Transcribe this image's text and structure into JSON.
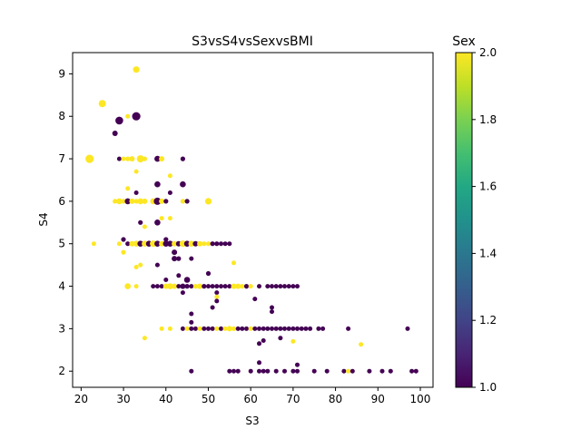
{
  "chart_data": {
    "type": "scatter",
    "title": "S3vsS4vsSexvsBMI",
    "xlabel": "S3",
    "ylabel": "S4",
    "xlim": [
      18,
      103
    ],
    "ylim": [
      1.62,
      9.5
    ],
    "x_ticks": [
      20,
      30,
      40,
      50,
      60,
      70,
      80,
      90,
      100
    ],
    "y_ticks": [
      2,
      3,
      4,
      5,
      6,
      7,
      8,
      9
    ],
    "grid": false,
    "colorbar": {
      "label": "Sex",
      "min": 1.0,
      "max": 2.0,
      "ticks": [
        "1.0",
        "1.2",
        "1.4",
        "1.6",
        "1.8",
        "2.0"
      ],
      "colormap": "viridis"
    },
    "size_variable": "BMI",
    "colors": {
      "sex_1": "#440154",
      "sex_2": "#fde725"
    },
    "points": [
      {
        "x": 22,
        "y": 7,
        "sex": 2,
        "bmi": 32
      },
      {
        "x": 25,
        "y": 8.3,
        "sex": 2,
        "bmi": 30
      },
      {
        "x": 33,
        "y": 9.1,
        "sex": 2,
        "bmi": 29
      },
      {
        "x": 29,
        "y": 7.9,
        "sex": 1,
        "bmi": 31
      },
      {
        "x": 33,
        "y": 8,
        "sex": 1,
        "bmi": 32
      },
      {
        "x": 31,
        "y": 8,
        "sex": 2,
        "bmi": 24
      },
      {
        "x": 28,
        "y": 7.6,
        "sex": 1,
        "bmi": 27
      },
      {
        "x": 23,
        "y": 5,
        "sex": 2,
        "bmi": 22
      },
      {
        "x": 29,
        "y": 7,
        "sex": 1,
        "bmi": 22
      },
      {
        "x": 30,
        "y": 7,
        "sex": 2,
        "bmi": 25
      },
      {
        "x": 31,
        "y": 7,
        "sex": 2,
        "bmi": 26
      },
      {
        "x": 32,
        "y": 7,
        "sex": 2,
        "bmi": 27
      },
      {
        "x": 34,
        "y": 7,
        "sex": 2,
        "bmi": 30
      },
      {
        "x": 35,
        "y": 7,
        "sex": 2,
        "bmi": 26
      },
      {
        "x": 38,
        "y": 7,
        "sex": 1,
        "bmi": 28
      },
      {
        "x": 39,
        "y": 7,
        "sex": 2,
        "bmi": 27
      },
      {
        "x": 44,
        "y": 7,
        "sex": 1,
        "bmi": 26
      },
      {
        "x": 41,
        "y": 6.6,
        "sex": 2,
        "bmi": 25
      },
      {
        "x": 33,
        "y": 6.7,
        "sex": 2,
        "bmi": 22
      },
      {
        "x": 38,
        "y": 6.4,
        "sex": 1,
        "bmi": 28
      },
      {
        "x": 44,
        "y": 6.4,
        "sex": 1,
        "bmi": 28
      },
      {
        "x": 31,
        "y": 6.3,
        "sex": 2,
        "bmi": 22
      },
      {
        "x": 33,
        "y": 6.2,
        "sex": 1,
        "bmi": 25
      },
      {
        "x": 41,
        "y": 6.2,
        "sex": 1,
        "bmi": 22
      },
      {
        "x": 28,
        "y": 6,
        "sex": 2,
        "bmi": 26
      },
      {
        "x": 29,
        "y": 6,
        "sex": 2,
        "bmi": 28
      },
      {
        "x": 30,
        "y": 6,
        "sex": 2,
        "bmi": 26
      },
      {
        "x": 31,
        "y": 6,
        "sex": 1,
        "bmi": 28
      },
      {
        "x": 32,
        "y": 6,
        "sex": 2,
        "bmi": 27
      },
      {
        "x": 33,
        "y": 6,
        "sex": 2,
        "bmi": 26
      },
      {
        "x": 34,
        "y": 6,
        "sex": 2,
        "bmi": 28
      },
      {
        "x": 35,
        "y": 6,
        "sex": 2,
        "bmi": 27
      },
      {
        "x": 37,
        "y": 6,
        "sex": 2,
        "bmi": 28
      },
      {
        "x": 38,
        "y": 6,
        "sex": 1,
        "bmi": 30
      },
      {
        "x": 39,
        "y": 6,
        "sex": 2,
        "bmi": 27
      },
      {
        "x": 40,
        "y": 6,
        "sex": 1,
        "bmi": 26
      },
      {
        "x": 44,
        "y": 6,
        "sex": 2,
        "bmi": 26
      },
      {
        "x": 45,
        "y": 6,
        "sex": 1,
        "bmi": 26
      },
      {
        "x": 50,
        "y": 6,
        "sex": 2,
        "bmi": 29
      },
      {
        "x": 41,
        "y": 5.6,
        "sex": 2,
        "bmi": 22
      },
      {
        "x": 39,
        "y": 5.6,
        "sex": 2,
        "bmi": 22
      },
      {
        "x": 34,
        "y": 5.5,
        "sex": 1,
        "bmi": 26
      },
      {
        "x": 38,
        "y": 5.5,
        "sex": 1,
        "bmi": 28
      },
      {
        "x": 35,
        "y": 5.4,
        "sex": 2,
        "bmi": 22
      },
      {
        "x": 30,
        "y": 5.1,
        "sex": 1,
        "bmi": 26
      },
      {
        "x": 40,
        "y": 5.1,
        "sex": 1,
        "bmi": 26
      },
      {
        "x": 29,
        "y": 5,
        "sex": 2,
        "bmi": 25
      },
      {
        "x": 31,
        "y": 5,
        "sex": 1,
        "bmi": 26
      },
      {
        "x": 32,
        "y": 5,
        "sex": 2,
        "bmi": 27
      },
      {
        "x": 33,
        "y": 5,
        "sex": 2,
        "bmi": 28
      },
      {
        "x": 34,
        "y": 5,
        "sex": 1,
        "bmi": 28
      },
      {
        "x": 35,
        "y": 5,
        "sex": 2,
        "bmi": 28
      },
      {
        "x": 36,
        "y": 5,
        "sex": 1,
        "bmi": 28
      },
      {
        "x": 37,
        "y": 5,
        "sex": 2,
        "bmi": 29
      },
      {
        "x": 38,
        "y": 5,
        "sex": 1,
        "bmi": 28
      },
      {
        "x": 39,
        "y": 5,
        "sex": 2,
        "bmi": 27
      },
      {
        "x": 40,
        "y": 5,
        "sex": 1,
        "bmi": 28
      },
      {
        "x": 41,
        "y": 5,
        "sex": 1,
        "bmi": 28
      },
      {
        "x": 42,
        "y": 5,
        "sex": 2,
        "bmi": 27
      },
      {
        "x": 43,
        "y": 5,
        "sex": 1,
        "bmi": 27
      },
      {
        "x": 44,
        "y": 5,
        "sex": 2,
        "bmi": 29
      },
      {
        "x": 45,
        "y": 5,
        "sex": 1,
        "bmi": 28
      },
      {
        "x": 46,
        "y": 5,
        "sex": 2,
        "bmi": 28
      },
      {
        "x": 47,
        "y": 5,
        "sex": 1,
        "bmi": 27
      },
      {
        "x": 48,
        "y": 5,
        "sex": 2,
        "bmi": 27
      },
      {
        "x": 49,
        "y": 5,
        "sex": 2,
        "bmi": 26
      },
      {
        "x": 50,
        "y": 5,
        "sex": 2,
        "bmi": 26
      },
      {
        "x": 51,
        "y": 5,
        "sex": 1,
        "bmi": 26
      },
      {
        "x": 52,
        "y": 5,
        "sex": 1,
        "bmi": 26
      },
      {
        "x": 53,
        "y": 5,
        "sex": 1,
        "bmi": 25
      },
      {
        "x": 54,
        "y": 5,
        "sex": 1,
        "bmi": 25
      },
      {
        "x": 55,
        "y": 5,
        "sex": 1,
        "bmi": 25
      },
      {
        "x": 30,
        "y": 4.8,
        "sex": 2,
        "bmi": 26
      },
      {
        "x": 42,
        "y": 4.8,
        "sex": 1,
        "bmi": 27
      },
      {
        "x": 42,
        "y": 4.65,
        "sex": 1,
        "bmi": 27
      },
      {
        "x": 43,
        "y": 4.65,
        "sex": 1,
        "bmi": 26
      },
      {
        "x": 46,
        "y": 4.65,
        "sex": 1,
        "bmi": 25
      },
      {
        "x": 56,
        "y": 4.55,
        "sex": 2,
        "bmi": 24
      },
      {
        "x": 38,
        "y": 4.5,
        "sex": 1,
        "bmi": 25
      },
      {
        "x": 33,
        "y": 4.45,
        "sex": 2,
        "bmi": 25
      },
      {
        "x": 34,
        "y": 4.5,
        "sex": 2,
        "bmi": 22
      },
      {
        "x": 50,
        "y": 4.3,
        "sex": 1,
        "bmi": 26
      },
      {
        "x": 43,
        "y": 4.25,
        "sex": 1,
        "bmi": 24
      },
      {
        "x": 40,
        "y": 4.15,
        "sex": 1,
        "bmi": 24
      },
      {
        "x": 45,
        "y": 4.15,
        "sex": 1,
        "bmi": 28
      },
      {
        "x": 31,
        "y": 4,
        "sex": 2,
        "bmi": 28
      },
      {
        "x": 33,
        "y": 4,
        "sex": 2,
        "bmi": 24
      },
      {
        "x": 37,
        "y": 4,
        "sex": 1,
        "bmi": 24
      },
      {
        "x": 38,
        "y": 4,
        "sex": 1,
        "bmi": 24
      },
      {
        "x": 39,
        "y": 4,
        "sex": 1,
        "bmi": 25
      },
      {
        "x": 40,
        "y": 4,
        "sex": 2,
        "bmi": 27
      },
      {
        "x": 41,
        "y": 4,
        "sex": 2,
        "bmi": 28
      },
      {
        "x": 42,
        "y": 4,
        "sex": 2,
        "bmi": 27
      },
      {
        "x": 43,
        "y": 4,
        "sex": 1,
        "bmi": 25
      },
      {
        "x": 44,
        "y": 4,
        "sex": 1,
        "bmi": 27
      },
      {
        "x": 45,
        "y": 4,
        "sex": 1,
        "bmi": 26
      },
      {
        "x": 46,
        "y": 4,
        "sex": 1,
        "bmi": 25
      },
      {
        "x": 47,
        "y": 4,
        "sex": 2,
        "bmi": 26
      },
      {
        "x": 48,
        "y": 4,
        "sex": 2,
        "bmi": 27
      },
      {
        "x": 49,
        "y": 4,
        "sex": 1,
        "bmi": 26
      },
      {
        "x": 50,
        "y": 4,
        "sex": 1,
        "bmi": 25
      },
      {
        "x": 51,
        "y": 4,
        "sex": 1,
        "bmi": 24
      },
      {
        "x": 52,
        "y": 4,
        "sex": 1,
        "bmi": 24
      },
      {
        "x": 53,
        "y": 4,
        "sex": 1,
        "bmi": 24
      },
      {
        "x": 54,
        "y": 4,
        "sex": 1,
        "bmi": 24
      },
      {
        "x": 55,
        "y": 4,
        "sex": 1,
        "bmi": 25
      },
      {
        "x": 56,
        "y": 4,
        "sex": 2,
        "bmi": 27
      },
      {
        "x": 57,
        "y": 4,
        "sex": 2,
        "bmi": 27
      },
      {
        "x": 58,
        "y": 4,
        "sex": 2,
        "bmi": 26
      },
      {
        "x": 59,
        "y": 4,
        "sex": 1,
        "bmi": 26
      },
      {
        "x": 60,
        "y": 4,
        "sex": 2,
        "bmi": 25
      },
      {
        "x": 62,
        "y": 4,
        "sex": 1,
        "bmi": 24
      },
      {
        "x": 64,
        "y": 4,
        "sex": 1,
        "bmi": 24
      },
      {
        "x": 65,
        "y": 4,
        "sex": 1,
        "bmi": 24
      },
      {
        "x": 66,
        "y": 4,
        "sex": 1,
        "bmi": 23
      },
      {
        "x": 67,
        "y": 4,
        "sex": 1,
        "bmi": 23
      },
      {
        "x": 68,
        "y": 4,
        "sex": 1,
        "bmi": 23
      },
      {
        "x": 69,
        "y": 4,
        "sex": 1,
        "bmi": 22
      },
      {
        "x": 70,
        "y": 4,
        "sex": 1,
        "bmi": 23
      },
      {
        "x": 71,
        "y": 4,
        "sex": 1,
        "bmi": 23
      },
      {
        "x": 44,
        "y": 3.85,
        "sex": 1,
        "bmi": 25
      },
      {
        "x": 52,
        "y": 3.85,
        "sex": 1,
        "bmi": 23
      },
      {
        "x": 52,
        "y": 3.75,
        "sex": 2,
        "bmi": 23
      },
      {
        "x": 52,
        "y": 3.65,
        "sex": 1,
        "bmi": 23
      },
      {
        "x": 61,
        "y": 3.7,
        "sex": 1,
        "bmi": 23
      },
      {
        "x": 51,
        "y": 3.5,
        "sex": 1,
        "bmi": 25
      },
      {
        "x": 65,
        "y": 3.5,
        "sex": 1,
        "bmi": 22
      },
      {
        "x": 65,
        "y": 3.4,
        "sex": 1,
        "bmi": 22
      },
      {
        "x": 46,
        "y": 3.35,
        "sex": 1,
        "bmi": 23
      },
      {
        "x": 46,
        "y": 3.15,
        "sex": 1,
        "bmi": 25
      },
      {
        "x": 39,
        "y": 3,
        "sex": 2,
        "bmi": 24
      },
      {
        "x": 41,
        "y": 3,
        "sex": 2,
        "bmi": 24
      },
      {
        "x": 44,
        "y": 3,
        "sex": 1,
        "bmi": 25
      },
      {
        "x": 45,
        "y": 3,
        "sex": 2,
        "bmi": 24
      },
      {
        "x": 46,
        "y": 3,
        "sex": 1,
        "bmi": 24
      },
      {
        "x": 47,
        "y": 3,
        "sex": 1,
        "bmi": 23
      },
      {
        "x": 48,
        "y": 3,
        "sex": 2,
        "bmi": 24
      },
      {
        "x": 49,
        "y": 3,
        "sex": 1,
        "bmi": 25
      },
      {
        "x": 50,
        "y": 3,
        "sex": 1,
        "bmi": 24
      },
      {
        "x": 51,
        "y": 3,
        "sex": 1,
        "bmi": 25
      },
      {
        "x": 52,
        "y": 3,
        "sex": 2,
        "bmi": 24
      },
      {
        "x": 53,
        "y": 3,
        "sex": 1,
        "bmi": 24
      },
      {
        "x": 54,
        "y": 3,
        "sex": 2,
        "bmi": 25
      },
      {
        "x": 55,
        "y": 3,
        "sex": 2,
        "bmi": 27
      },
      {
        "x": 56,
        "y": 3,
        "sex": 2,
        "bmi": 26
      },
      {
        "x": 57,
        "y": 3,
        "sex": 1,
        "bmi": 25
      },
      {
        "x": 58,
        "y": 3,
        "sex": 1,
        "bmi": 24
      },
      {
        "x": 59,
        "y": 3,
        "sex": 1,
        "bmi": 24
      },
      {
        "x": 60,
        "y": 3,
        "sex": 2,
        "bmi": 25
      },
      {
        "x": 61,
        "y": 3,
        "sex": 1,
        "bmi": 24
      },
      {
        "x": 62,
        "y": 3,
        "sex": 1,
        "bmi": 24
      },
      {
        "x": 63,
        "y": 3,
        "sex": 1,
        "bmi": 23
      },
      {
        "x": 64,
        "y": 3,
        "sex": 1,
        "bmi": 24
      },
      {
        "x": 65,
        "y": 3,
        "sex": 1,
        "bmi": 24
      },
      {
        "x": 66,
        "y": 3,
        "sex": 1,
        "bmi": 24
      },
      {
        "x": 67,
        "y": 3,
        "sex": 1,
        "bmi": 23
      },
      {
        "x": 68,
        "y": 3,
        "sex": 1,
        "bmi": 24
      },
      {
        "x": 69,
        "y": 3,
        "sex": 1,
        "bmi": 24
      },
      {
        "x": 70,
        "y": 3,
        "sex": 1,
        "bmi": 24
      },
      {
        "x": 71,
        "y": 3,
        "sex": 1,
        "bmi": 24
      },
      {
        "x": 72,
        "y": 3,
        "sex": 1,
        "bmi": 23
      },
      {
        "x": 73,
        "y": 3,
        "sex": 1,
        "bmi": 23
      },
      {
        "x": 74,
        "y": 3,
        "sex": 1,
        "bmi": 23
      },
      {
        "x": 76,
        "y": 3,
        "sex": 1,
        "bmi": 23
      },
      {
        "x": 77,
        "y": 3,
        "sex": 1,
        "bmi": 23
      },
      {
        "x": 83,
        "y": 3,
        "sex": 1,
        "bmi": 22
      },
      {
        "x": 97,
        "y": 3,
        "sex": 1,
        "bmi": 22
      },
      {
        "x": 35,
        "y": 2.78,
        "sex": 2,
        "bmi": 25
      },
      {
        "x": 67,
        "y": 2.78,
        "sex": 1,
        "bmi": 22
      },
      {
        "x": 63,
        "y": 2.72,
        "sex": 1,
        "bmi": 23
      },
      {
        "x": 62,
        "y": 2.65,
        "sex": 1,
        "bmi": 22
      },
      {
        "x": 70,
        "y": 2.7,
        "sex": 2,
        "bmi": 22
      },
      {
        "x": 86,
        "y": 2.63,
        "sex": 2,
        "bmi": 23
      },
      {
        "x": 62,
        "y": 2.2,
        "sex": 1,
        "bmi": 22
      },
      {
        "x": 71,
        "y": 2.15,
        "sex": 1,
        "bmi": 22
      },
      {
        "x": 46,
        "y": 2,
        "sex": 1,
        "bmi": 22
      },
      {
        "x": 55,
        "y": 2,
        "sex": 1,
        "bmi": 24
      },
      {
        "x": 56,
        "y": 2,
        "sex": 1,
        "bmi": 23
      },
      {
        "x": 57,
        "y": 2,
        "sex": 1,
        "bmi": 22
      },
      {
        "x": 60,
        "y": 2,
        "sex": 1,
        "bmi": 22
      },
      {
        "x": 62,
        "y": 2,
        "sex": 1,
        "bmi": 23
      },
      {
        "x": 63,
        "y": 2,
        "sex": 1,
        "bmi": 23
      },
      {
        "x": 64,
        "y": 2,
        "sex": 1,
        "bmi": 23
      },
      {
        "x": 66,
        "y": 2,
        "sex": 1,
        "bmi": 22
      },
      {
        "x": 68,
        "y": 2,
        "sex": 1,
        "bmi": 22
      },
      {
        "x": 70,
        "y": 2,
        "sex": 1,
        "bmi": 22
      },
      {
        "x": 71,
        "y": 2,
        "sex": 1,
        "bmi": 22
      },
      {
        "x": 75,
        "y": 2,
        "sex": 1,
        "bmi": 22
      },
      {
        "x": 78,
        "y": 2,
        "sex": 1,
        "bmi": 22
      },
      {
        "x": 82,
        "y": 2,
        "sex": 1,
        "bmi": 24
      },
      {
        "x": 83,
        "y": 2,
        "sex": 2,
        "bmi": 22
      },
      {
        "x": 84,
        "y": 2,
        "sex": 1,
        "bmi": 22
      },
      {
        "x": 88,
        "y": 2,
        "sex": 1,
        "bmi": 22
      },
      {
        "x": 91,
        "y": 2,
        "sex": 1,
        "bmi": 22
      },
      {
        "x": 93,
        "y": 2,
        "sex": 1,
        "bmi": 22
      },
      {
        "x": 98,
        "y": 2,
        "sex": 1,
        "bmi": 22
      },
      {
        "x": 99,
        "y": 2,
        "sex": 1,
        "bmi": 22
      }
    ]
  }
}
